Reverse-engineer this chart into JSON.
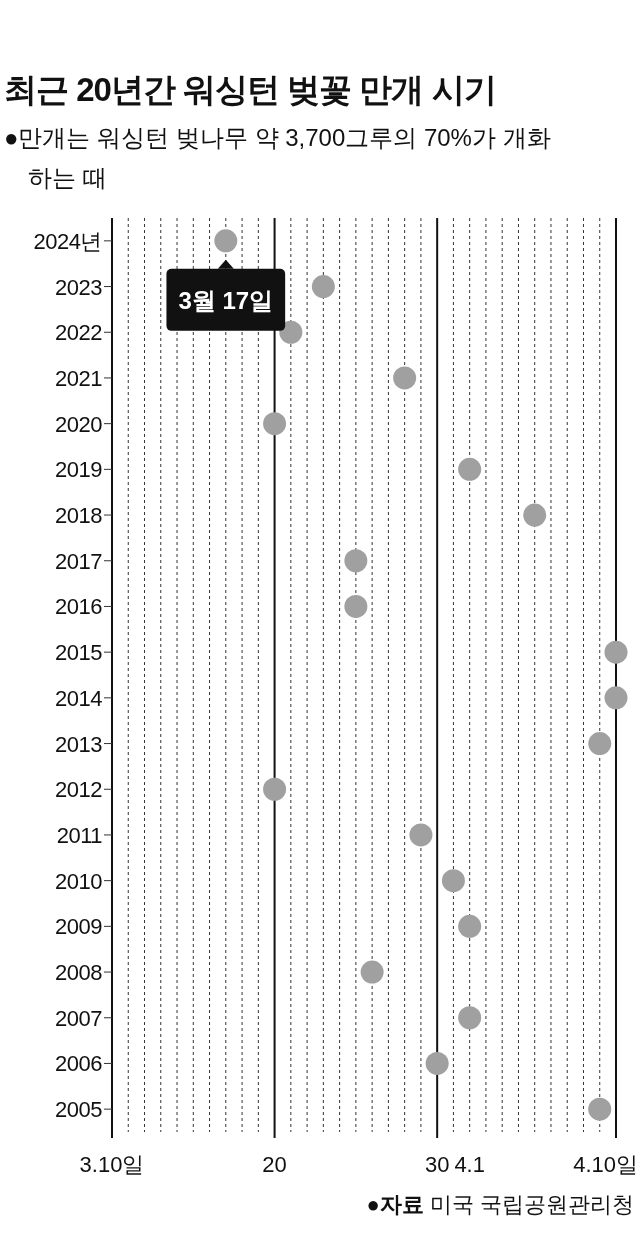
{
  "chart_data": {
    "type": "scatter",
    "title": "최근 20년간 워싱턴 벚꽃 만개 시기",
    "subtitle": "●만개는 워싱턴 벚나무 약 3,700그루의 70%가 개화하는 때",
    "x": [
      "--03-17",
      "--03-23",
      "--03-21",
      "--03-28",
      "--03-20",
      "--04-01",
      "--04-05",
      "--03-25",
      "--03-25",
      "--04-10",
      "--04-10",
      "--04-09",
      "--03-20",
      "--03-29",
      "--03-31",
      "--04-01",
      "--03-26",
      "--04-01",
      "--03-30",
      "--04-09"
    ],
    "values": [
      2024,
      2023,
      2022,
      2021,
      2020,
      2019,
      2018,
      2017,
      2016,
      2015,
      2014,
      2013,
      2012,
      2011,
      2010,
      2009,
      2008,
      2007,
      2006,
      2005
    ],
    "color": "#a0a0a0",
    "marker": "circle",
    "grid": "x",
    "xlim": [
      "--03-10",
      "--04-10"
    ],
    "xticks": [
      {
        "value": "--03-10",
        "label": "3.10일"
      },
      {
        "value": "--03-11",
        "label": null
      },
      {
        "value": "--03-12",
        "label": null
      },
      {
        "value": "--03-13",
        "label": null
      },
      {
        "value": "--03-14",
        "label": null
      },
      {
        "value": "--03-15",
        "label": null
      },
      {
        "value": "--03-16",
        "label": null
      },
      {
        "value": "--03-17",
        "label": null
      },
      {
        "value": "--03-18",
        "label": null
      },
      {
        "value": "--03-19",
        "label": null
      },
      {
        "value": "--03-20",
        "label": "20"
      },
      {
        "value": "--03-21",
        "label": null
      },
      {
        "value": "--03-22",
        "label": null
      },
      {
        "value": "--03-23",
        "label": null
      },
      {
        "value": "--03-24",
        "label": null
      },
      {
        "value": "--03-25",
        "label": null
      },
      {
        "value": "--03-26",
        "label": null
      },
      {
        "value": "--03-27",
        "label": null
      },
      {
        "value": "--03-28",
        "label": null
      },
      {
        "value": "--03-29",
        "label": null
      },
      {
        "value": "--03-30",
        "label": "30"
      },
      {
        "value": "--03-31",
        "label": null
      },
      {
        "value": "--04-01",
        "label": "4.1"
      },
      {
        "value": "--04-02",
        "label": null
      },
      {
        "value": "--04-03",
        "label": null
      },
      {
        "value": "--04-04",
        "label": null
      },
      {
        "value": "--04-05",
        "label": null
      },
      {
        "value": "--04-06",
        "label": null
      },
      {
        "value": "--04-07",
        "label": null
      },
      {
        "value": "--04-08",
        "label": null
      },
      {
        "value": "--04-09",
        "label": null
      },
      {
        "value": "--04-10",
        "label": "4.10일"
      }
    ],
    "ylim": [
      2004.5,
      2024.5
    ],
    "yticks": [
      {
        "value": 2024,
        "label": "2024년"
      },
      2023,
      2022,
      2021,
      2020,
      2019,
      2018,
      2017,
      2016,
      2015,
      2014,
      2013,
      2012,
      2011,
      2010,
      2009,
      2008,
      2007,
      2006,
      2005
    ],
    "annotations": [
      {
        "text": "3월 17일",
        "x": "--03-17",
        "y": 2024
      },
      "●**자료** 미국 국립공원관리청"
    ]
  }
}
